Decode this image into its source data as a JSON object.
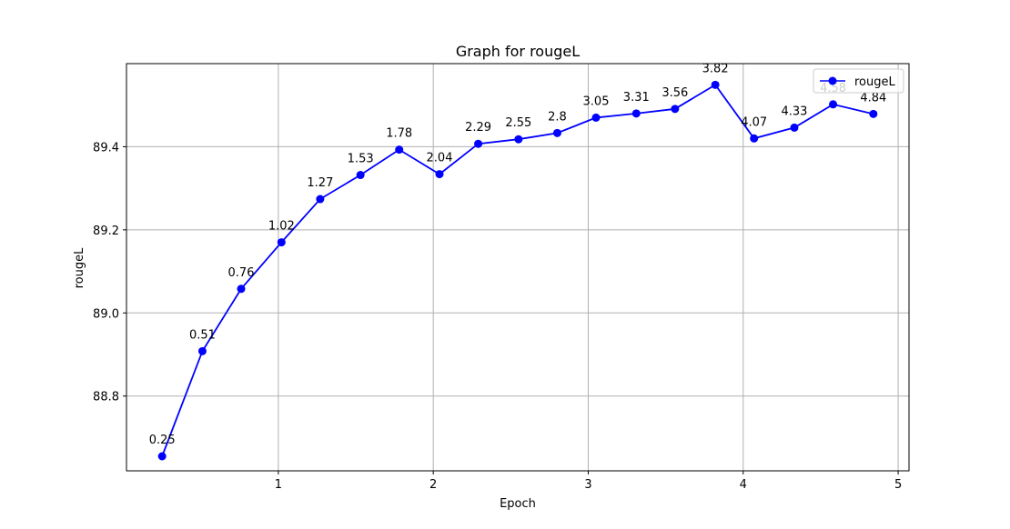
{
  "chart_data": {
    "type": "line",
    "title": "Graph for rougeL",
    "xlabel": "Epoch",
    "ylabel": "rougeL",
    "xlim": [
      0.02,
      5.07
    ],
    "ylim": [
      88.62,
      89.6
    ],
    "xticks": [
      1,
      2,
      3,
      4,
      5
    ],
    "yticks": [
      88.8,
      89.0,
      89.2,
      89.4
    ],
    "ytick_labels": [
      "88.8",
      "89.0",
      "89.2",
      "89.4"
    ],
    "grid": true,
    "legend_position": "top-right",
    "series": [
      {
        "name": "rougeL",
        "color": "#0000ff",
        "marker": "circle",
        "x": [
          0.25,
          0.51,
          0.76,
          1.02,
          1.27,
          1.53,
          1.78,
          2.04,
          2.29,
          2.55,
          2.8,
          3.05,
          3.31,
          3.56,
          3.82,
          4.07,
          4.33,
          4.58,
          4.84
        ],
        "y": [
          88.655,
          88.908,
          89.058,
          89.17,
          89.274,
          89.332,
          89.393,
          89.334,
          89.407,
          89.418,
          89.433,
          89.47,
          89.48,
          89.491,
          89.549,
          89.42,
          89.446,
          89.502,
          89.479
        ],
        "point_labels": [
          "0.25",
          "0.51",
          "0.76",
          "1.02",
          "1.27",
          "1.53",
          "1.78",
          "2.04",
          "2.29",
          "2.55",
          "2.8",
          "3.05",
          "3.31",
          "3.56",
          "3.82",
          "4.07",
          "4.33",
          "4.58",
          "4.84"
        ]
      }
    ]
  }
}
